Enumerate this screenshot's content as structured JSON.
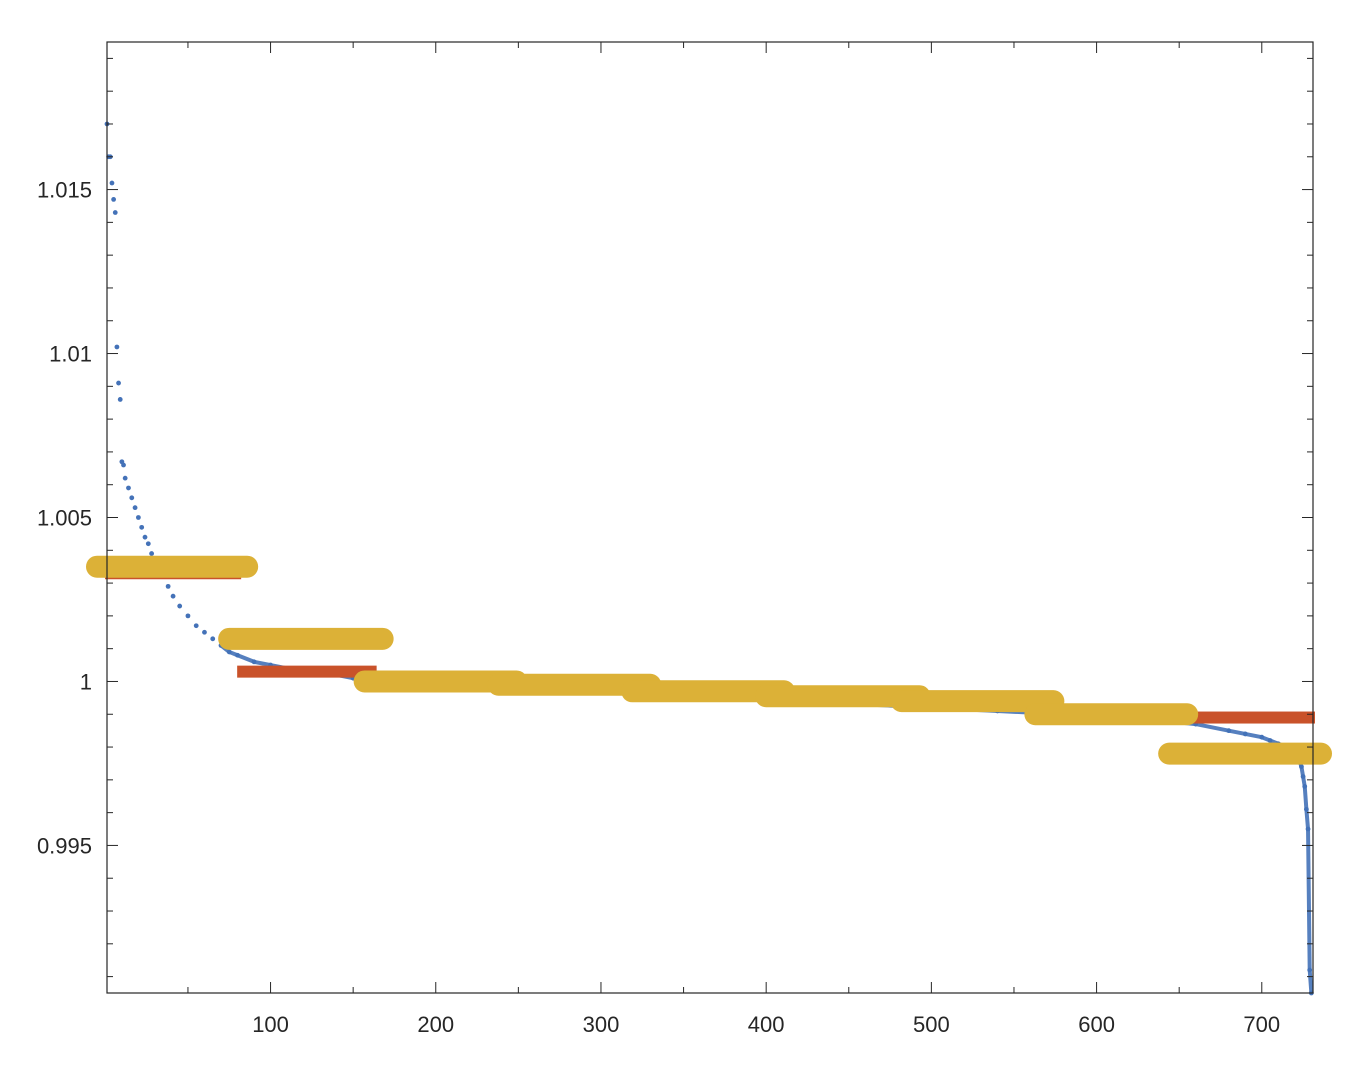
{
  "chart_data": {
    "type": "scatter",
    "title": "",
    "xlabel": "",
    "ylabel": "",
    "xlim": [
      1,
      731
    ],
    "ylim": [
      0.9905,
      1.0195
    ],
    "x_ticks": [
      100,
      200,
      300,
      400,
      500,
      600,
      700
    ],
    "x_tick_labels": [
      "100",
      "200",
      "300",
      "400",
      "500",
      "600",
      "700"
    ],
    "x_minor_ticks": [
      50,
      150,
      250,
      350,
      450,
      550,
      650
    ],
    "y_ticks": [
      0.995,
      1.0,
      1.005,
      1.01,
      1.015
    ],
    "y_tick_labels": [
      "0.995",
      "1",
      "1.005",
      "1.01",
      "1.015"
    ],
    "y_minor_ticks": [
      0.991,
      0.992,
      0.993,
      0.994,
      0.996,
      0.997,
      0.998,
      0.999,
      1.001,
      1.002,
      1.003,
      1.004,
      1.006,
      1.007,
      1.008,
      1.009,
      1.011,
      1.012,
      1.013,
      1.014,
      1.016,
      1.017,
      1.018,
      1.019
    ],
    "grid": false,
    "box": true,
    "series": [
      {
        "marker": "dot",
        "color": "#4472b8",
        "x": [
          1,
          2,
          3,
          4,
          5,
          6,
          7,
          8,
          9,
          10,
          11,
          12,
          14,
          16,
          18,
          20,
          22,
          24,
          26,
          28,
          30,
          32,
          35,
          38,
          41,
          45,
          50,
          55,
          60,
          65,
          70,
          75,
          80,
          90,
          100,
          110,
          120,
          130,
          140,
          150,
          160,
          170,
          180,
          200,
          220,
          240,
          260,
          280,
          300,
          320,
          340,
          360,
          380,
          400,
          420,
          440,
          460,
          480,
          500,
          520,
          540,
          560,
          580,
          600,
          620,
          640,
          660,
          680,
          690,
          700,
          705,
          710,
          715,
          718,
          720,
          722,
          724,
          725,
          726,
          727,
          728,
          729,
          730
        ],
        "y": [
          1.017,
          1.016,
          1.016,
          1.0152,
          1.0147,
          1.0143,
          1.0102,
          1.0091,
          1.0086,
          1.0067,
          1.0066,
          1.0062,
          1.0059,
          1.0056,
          1.0053,
          1.005,
          1.0047,
          1.0044,
          1.0042,
          1.0039,
          1.0037,
          1.0035,
          1.0032,
          1.0029,
          1.0026,
          1.0023,
          1.002,
          1.0017,
          1.0015,
          1.0013,
          1.0011,
          1.0009,
          1.0008,
          1.0006,
          1.0005,
          1.0004,
          1.0003,
          1.0002,
          1.0002,
          1.0001,
          1.0001,
          1.0,
          1.0,
          0.99995,
          0.9999,
          0.99985,
          0.9998,
          0.99975,
          0.9997,
          0.99965,
          0.9996,
          0.99955,
          0.9995,
          0.99945,
          0.9994,
          0.99935,
          0.9993,
          0.99925,
          0.9992,
          0.99915,
          0.9991,
          0.99905,
          0.999,
          0.99895,
          0.9989,
          0.9988,
          0.9987,
          0.9985,
          0.9984,
          0.9983,
          0.9982,
          0.9981,
          0.998,
          0.9979,
          0.9978,
          0.9977,
          0.9974,
          0.9971,
          0.9968,
          0.9961,
          0.9955,
          0.9912,
          0.9905
        ]
      },
      {
        "marker": "cross",
        "color": "#c9522a",
        "segments": [
          {
            "x0": 0,
            "x1": 81,
            "y": 1.0033
          },
          {
            "x0": 81,
            "x1": 163,
            "y": 1.0003
          },
          {
            "x0": 163,
            "x1": 244,
            "y": 1.0
          },
          {
            "x0": 244,
            "x1": 325,
            "y": 0.9999
          },
          {
            "x0": 325,
            "x1": 406,
            "y": 0.9997
          },
          {
            "x0": 406,
            "x1": 488,
            "y": 0.99955
          },
          {
            "x0": 488,
            "x1": 569,
            "y": 0.9994
          },
          {
            "x0": 569,
            "x1": 650,
            "y": 0.999
          },
          {
            "x0": 650,
            "x1": 731,
            "y": 0.9989
          }
        ]
      },
      {
        "marker": "circle",
        "color": "#dcb137",
        "segments": [
          {
            "x0": 0,
            "x1": 81,
            "y": 1.0035
          },
          {
            "x0": 81,
            "x1": 163,
            "y": 1.0013
          },
          {
            "x0": 163,
            "x1": 244,
            "y": 1.0
          },
          {
            "x0": 244,
            "x1": 325,
            "y": 0.9999
          },
          {
            "x0": 325,
            "x1": 406,
            "y": 0.9997
          },
          {
            "x0": 406,
            "x1": 488,
            "y": 0.99955
          },
          {
            "x0": 488,
            "x1": 569,
            "y": 0.9994
          },
          {
            "x0": 569,
            "x1": 650,
            "y": 0.999
          },
          {
            "x0": 650,
            "x1": 731,
            "y": 0.9978
          }
        ]
      }
    ]
  }
}
